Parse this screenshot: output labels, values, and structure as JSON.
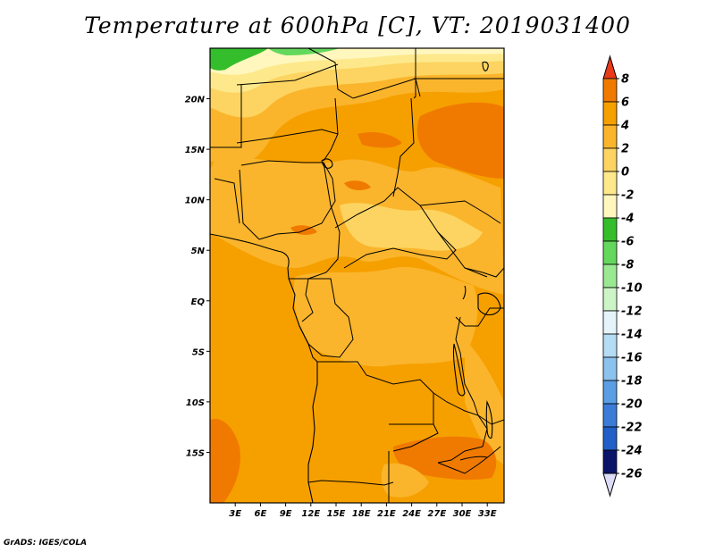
{
  "title": "Temperature at 600hPa [C], VT: 2019031400",
  "credit": "GrADS: IGES/COLA",
  "map": {
    "lon_range": [
      0,
      35
    ],
    "lat_range": [
      -20,
      25
    ],
    "lat_ticks": [
      {
        "value": 20,
        "label": "20N"
      },
      {
        "value": 15,
        "label": "15N"
      },
      {
        "value": 10,
        "label": "10N"
      },
      {
        "value": 5,
        "label": "5N"
      },
      {
        "value": 0,
        "label": "EQ"
      },
      {
        "value": -5,
        "label": "5S"
      },
      {
        "value": -10,
        "label": "10S"
      },
      {
        "value": -15,
        "label": "15S"
      }
    ],
    "lon_ticks": [
      {
        "value": 3,
        "label": "3E"
      },
      {
        "value": 6,
        "label": "6E"
      },
      {
        "value": 9,
        "label": "9E"
      },
      {
        "value": 12,
        "label": "12E"
      },
      {
        "value": 15,
        "label": "15E"
      },
      {
        "value": 18,
        "label": "18E"
      },
      {
        "value": 21,
        "label": "21E"
      },
      {
        "value": 24,
        "label": "24E"
      },
      {
        "value": 27,
        "label": "27E"
      },
      {
        "value": 30,
        "label": "30E"
      },
      {
        "value": 33,
        "label": "33E"
      }
    ]
  },
  "colorbar": {
    "levels": [
      {
        "label": "8",
        "color": "#f07a00"
      },
      {
        "label": "6",
        "color": "#f6a000"
      },
      {
        "label": "4",
        "color": "#fab52c"
      },
      {
        "label": "2",
        "color": "#fdd461"
      },
      {
        "label": "0",
        "color": "#fde98c"
      },
      {
        "label": "-2",
        "color": "#fff7bd"
      },
      {
        "label": "-4",
        "color": "#34be2c"
      },
      {
        "label": "-6",
        "color": "#64d85c"
      },
      {
        "label": "-8",
        "color": "#9ae892"
      },
      {
        "label": "-10",
        "color": "#cdf4c6"
      },
      {
        "label": "-12",
        "color": "#e4f4fa"
      },
      {
        "label": "-14",
        "color": "#b4dcf4"
      },
      {
        "label": "-16",
        "color": "#8cc2ee"
      },
      {
        "label": "-18",
        "color": "#5a9ee4"
      },
      {
        "label": "-20",
        "color": "#3a7cd8"
      },
      {
        "label": "-22",
        "color": "#2060c8"
      },
      {
        "label": "-24",
        "color": "#1a46b4"
      },
      {
        "label": "-26",
        "color": "#0e2a90"
      }
    ],
    "top_color": "#e83a18",
    "bottom_color": "#dcdcf6",
    "deepest_color": "#0a1468"
  },
  "field_colors": {
    "base": "#f6a000",
    "warm": "#f07a00",
    "mild": "#fab52c",
    "cool": "#fdd461",
    "cooler": "#fde98c",
    "coldest": "#fff7bd",
    "green": "#34be2c",
    "light_green": "#64d85c"
  }
}
